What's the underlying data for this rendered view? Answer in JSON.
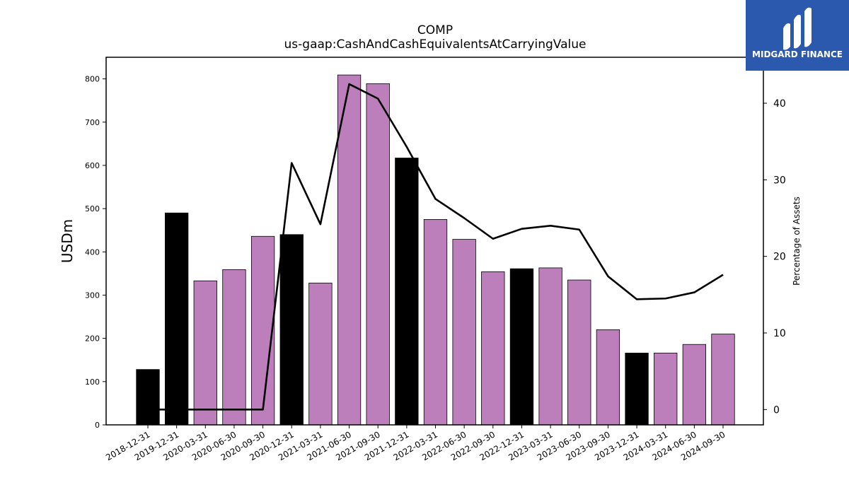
{
  "chart_data": {
    "type": "bar",
    "title": "COMP",
    "subtitle": "us-gaap:CashAndCashEquivalentsAtCarryingValue",
    "ylabel": "USDm",
    "y2label": "Percentage of Assets",
    "ylim": [
      0,
      850
    ],
    "y2lim": [
      -2,
      46
    ],
    "yticks": [
      0,
      100,
      200,
      300,
      400,
      500,
      600,
      700,
      800
    ],
    "y2ticks": [
      0,
      10,
      20,
      30,
      40
    ],
    "categories": [
      "2018-12-31",
      "2019-12-31",
      "2020-03-31",
      "2020-06-30",
      "2020-09-30",
      "2020-12-31",
      "2021-03-31",
      "2021-06-30",
      "2021-09-30",
      "2021-12-31",
      "2022-03-31",
      "2022-06-30",
      "2022-09-30",
      "2022-12-31",
      "2023-03-31",
      "2023-06-30",
      "2023-09-30",
      "2023-12-31",
      "2024-03-31",
      "2024-06-30",
      "2024-09-30"
    ],
    "values": [
      128,
      490,
      333,
      359,
      436,
      440,
      328,
      809,
      789,
      617,
      475,
      429,
      354,
      361,
      363,
      335,
      220,
      166,
      166,
      186,
      210
    ],
    "annual": [
      true,
      true,
      false,
      false,
      false,
      true,
      false,
      false,
      false,
      true,
      false,
      false,
      false,
      true,
      false,
      false,
      false,
      true,
      false,
      false,
      false
    ],
    "line_values": [
      0,
      0,
      0,
      0,
      0,
      32.2,
      24.2,
      42.5,
      40.6,
      34.3,
      27.5,
      25.0,
      22.3,
      23.6,
      24.0,
      23.5,
      17.4,
      14.4,
      14.5,
      15.3,
      17.6
    ],
    "colors": {
      "annual": "#000000",
      "quarterly": "#bc7fbc",
      "line": "#000000"
    },
    "grid": false
  },
  "logo": {
    "text": "MIDGARD FINANCE",
    "bg": "#2b59ae"
  }
}
